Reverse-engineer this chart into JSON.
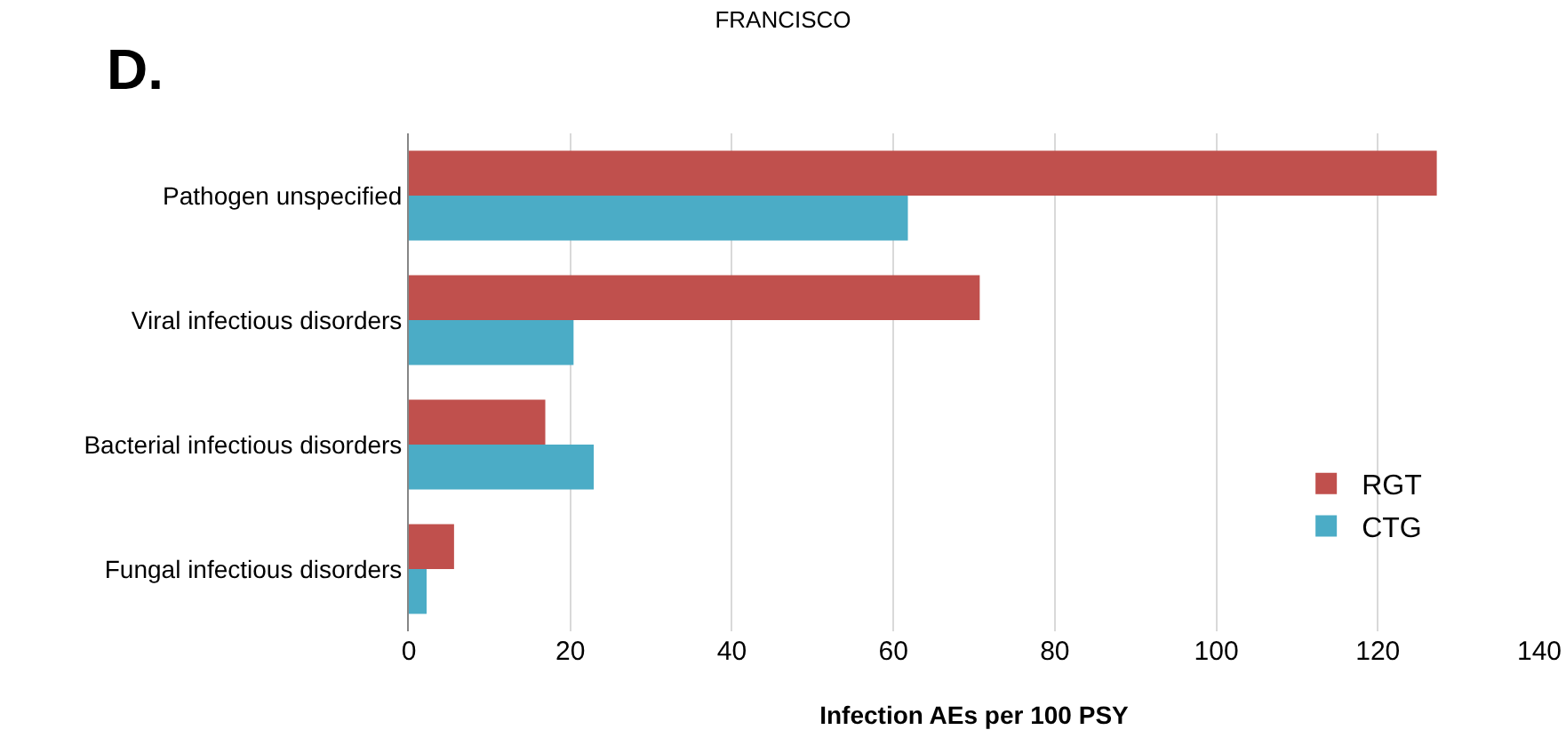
{
  "chart_data": {
    "type": "bar",
    "orientation": "horizontal",
    "title": "FRANCISCO",
    "xlabel": "Infection AEs per 100 PSY",
    "annotations": [
      "D."
    ],
    "categories": [
      "Pathogen unspecified",
      "Viral infectious disorders",
      "Bacterial infectious disorders",
      "Fungal infectious disorders"
    ],
    "series": [
      {
        "name": "RGT",
        "color": "#c0504d",
        "values": [
          127.3,
          70.7,
          16.9,
          5.6
        ]
      },
      {
        "name": "CTG",
        "color": "#4bacc6",
        "values": [
          61.8,
          20.4,
          22.9,
          2.2
        ]
      }
    ],
    "xlim": [
      0,
      140
    ],
    "xticks": [
      0,
      20,
      40,
      60,
      80,
      100,
      120,
      140
    ],
    "grid": "x",
    "legend": "bottom right"
  }
}
